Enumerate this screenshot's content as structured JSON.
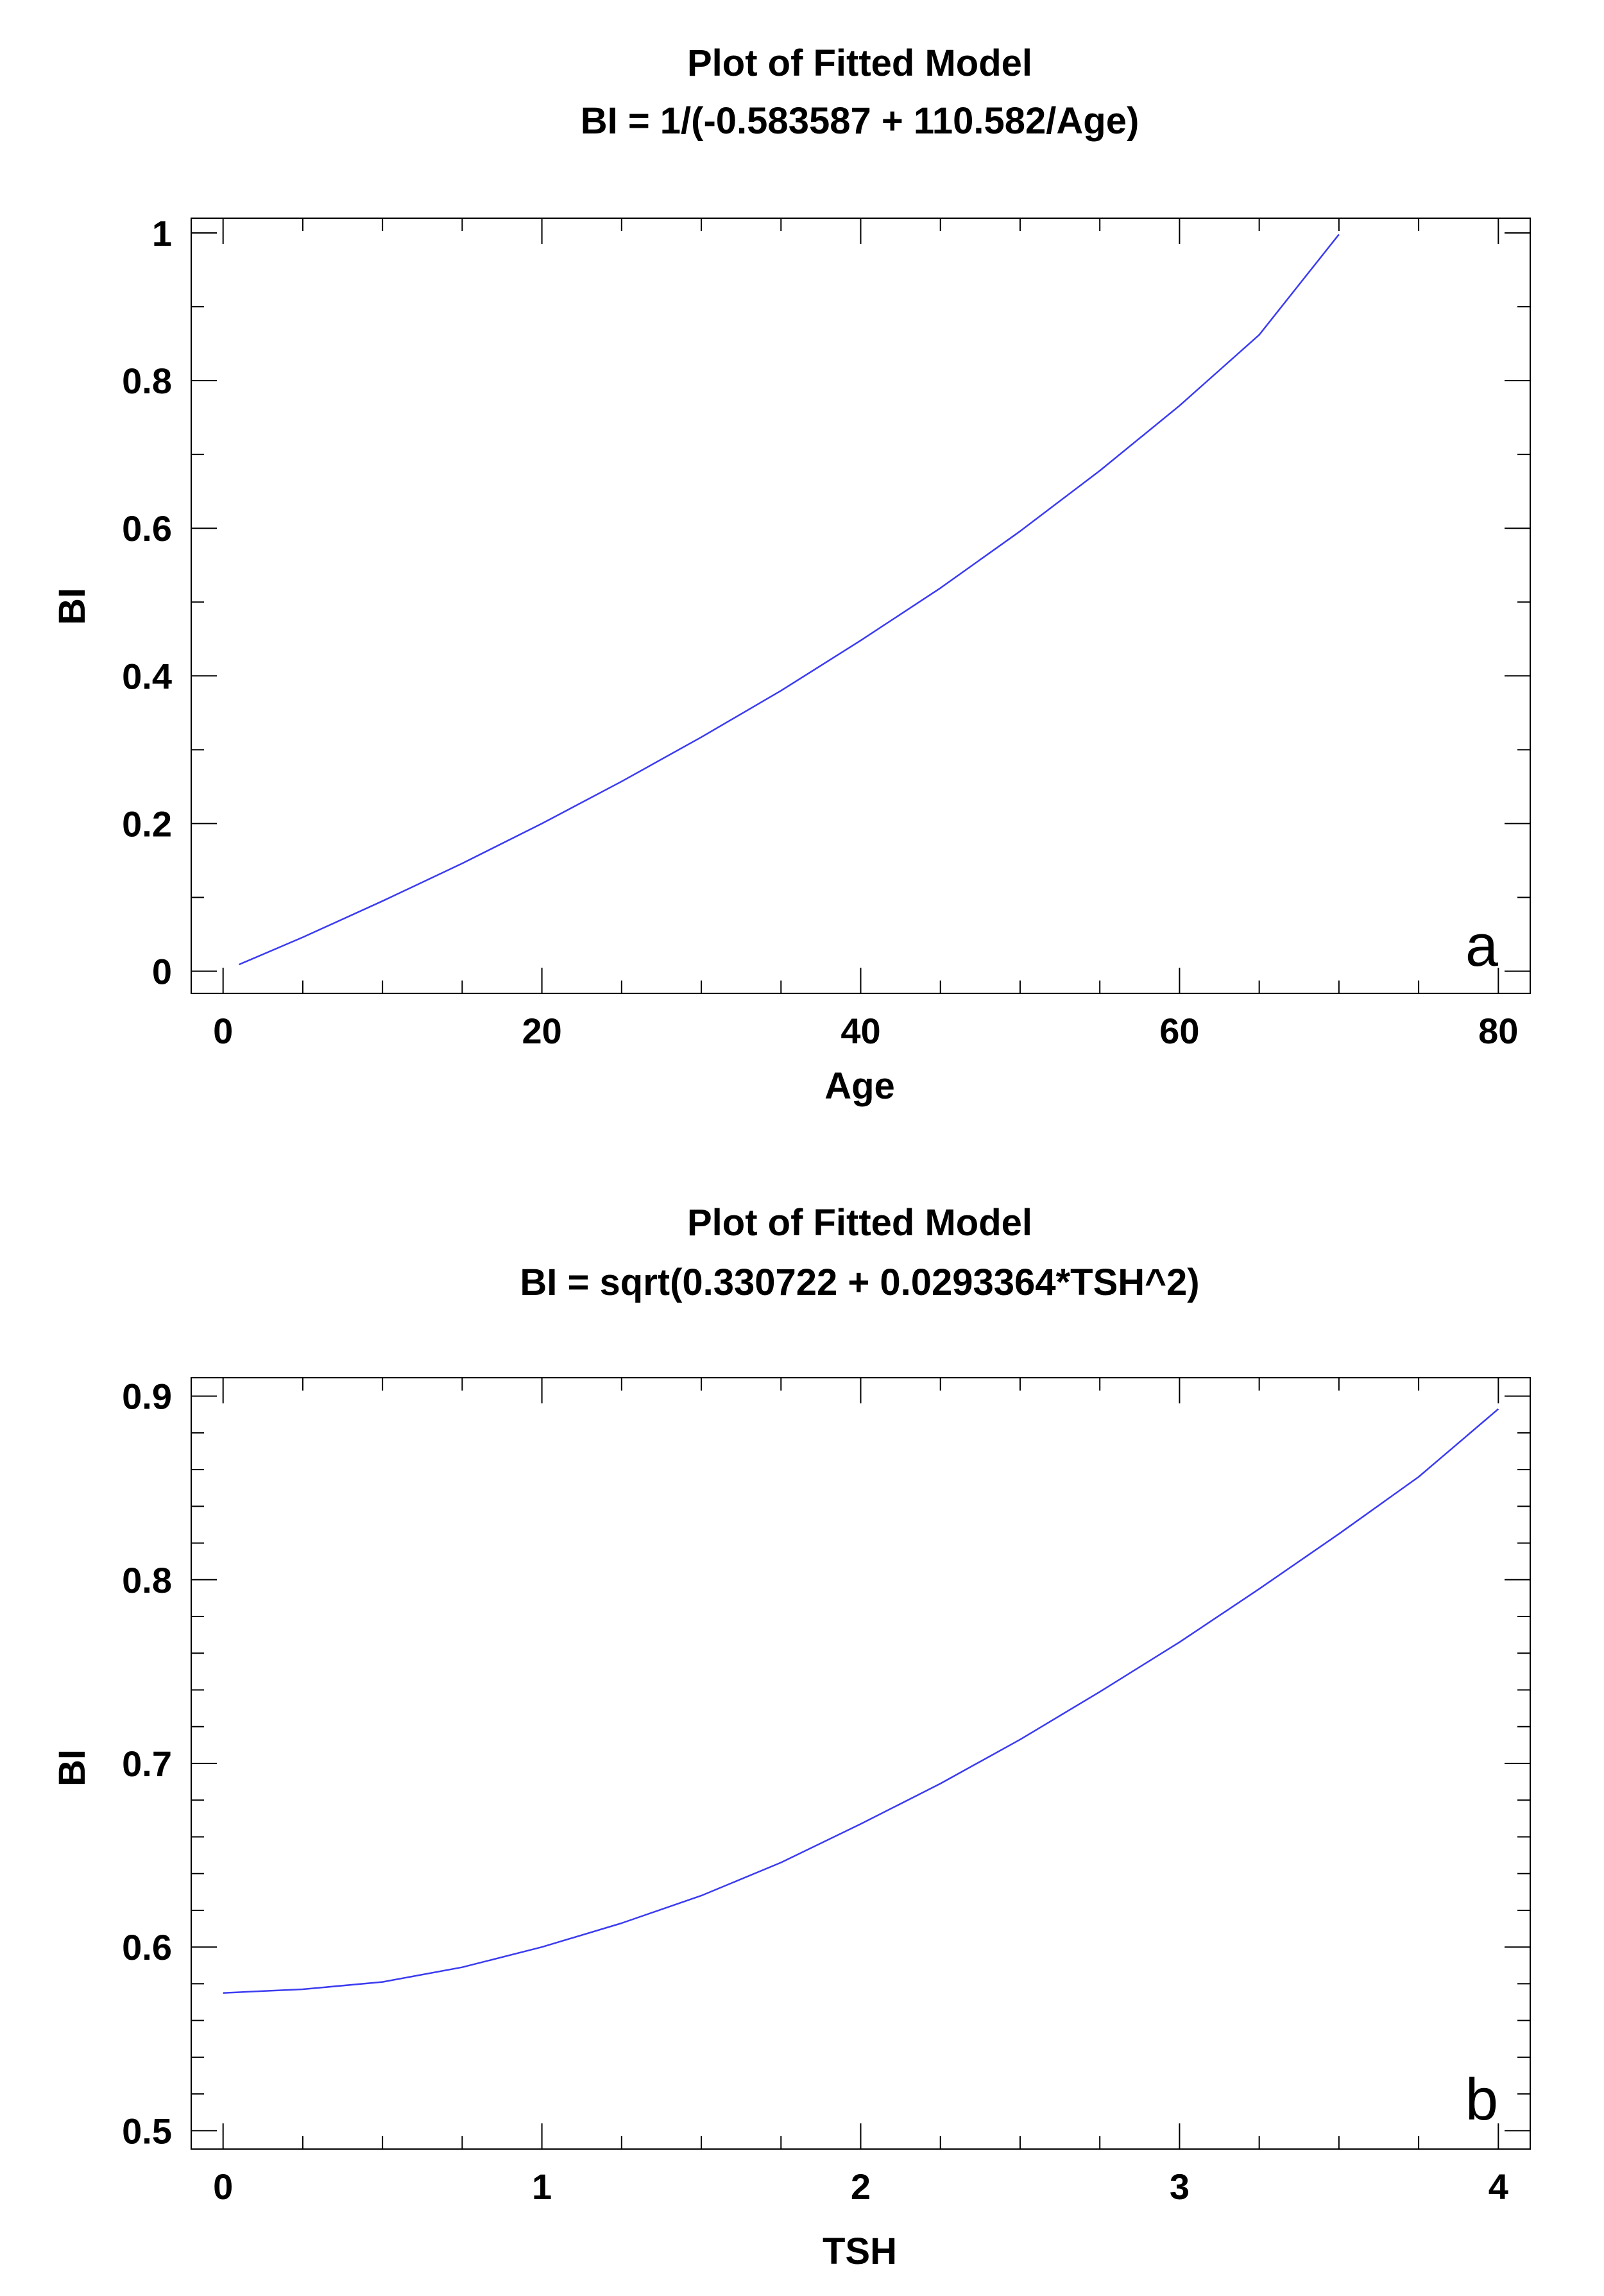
{
  "chart_data": [
    {
      "type": "line",
      "title": "Plot of Fitted Model",
      "subtitle": "BI = 1/(-0.583587 + 110.582/Age)",
      "xlabel": "Age",
      "ylabel": "BI",
      "xlim": [
        -2,
        82
      ],
      "ylim": [
        -0.03,
        1.02
      ],
      "xticks": [
        0,
        20,
        40,
        60,
        80
      ],
      "xtick_labels": [
        "0",
        "20",
        "40",
        "60",
        "80"
      ],
      "yticks": [
        0,
        0.2,
        0.4,
        0.6,
        0.8,
        1
      ],
      "ytick_labels": [
        "0",
        "0.2",
        "0.4",
        "0.6",
        "0.8",
        "1"
      ],
      "x_minor_step": 5,
      "y_minor_step": 0.1,
      "grid": false,
      "annotation": "a",
      "line_color": "#3b3bf0",
      "series": [
        {
          "x": [
            1,
            5,
            10,
            15,
            20,
            25,
            30,
            35,
            40,
            45,
            50,
            55,
            60,
            65,
            70
          ],
          "y": [
            0.009,
            0.046,
            0.095,
            0.146,
            0.2,
            0.257,
            0.317,
            0.38,
            0.448,
            0.519,
            0.596,
            0.678,
            0.766,
            0.862,
            0.998
          ]
        }
      ]
    },
    {
      "type": "line",
      "title": "Plot of Fitted Model",
      "subtitle": "BI = sqrt(0.330722 + 0.0293364*TSH^2)",
      "xlabel": "TSH",
      "ylabel": "BI",
      "xlim": [
        -0.1,
        4.1
      ],
      "ylim": [
        0.49,
        0.91
      ],
      "xticks": [
        0,
        1,
        2,
        3,
        4
      ],
      "xtick_labels": [
        "0",
        "1",
        "2",
        "3",
        "4"
      ],
      "yticks": [
        0.5,
        0.6,
        0.7,
        0.8,
        0.9
      ],
      "ytick_labels": [
        "0.5",
        "0.6",
        "0.7",
        "0.8",
        "0.9"
      ],
      "x_minor_step": 0.25,
      "y_minor_step": 0.02,
      "grid": false,
      "annotation": "b",
      "line_color": "#3b3bf0",
      "series": [
        {
          "x": [
            0,
            0.25,
            0.5,
            0.75,
            1,
            1.25,
            1.5,
            1.75,
            2,
            2.25,
            2.5,
            2.75,
            3,
            3.25,
            3.5,
            3.75,
            4
          ],
          "y": [
            0.575,
            0.577,
            0.581,
            0.589,
            0.6,
            0.613,
            0.628,
            0.646,
            0.667,
            0.689,
            0.713,
            0.739,
            0.766,
            0.795,
            0.825,
            0.856,
            0.893
          ]
        }
      ]
    }
  ]
}
